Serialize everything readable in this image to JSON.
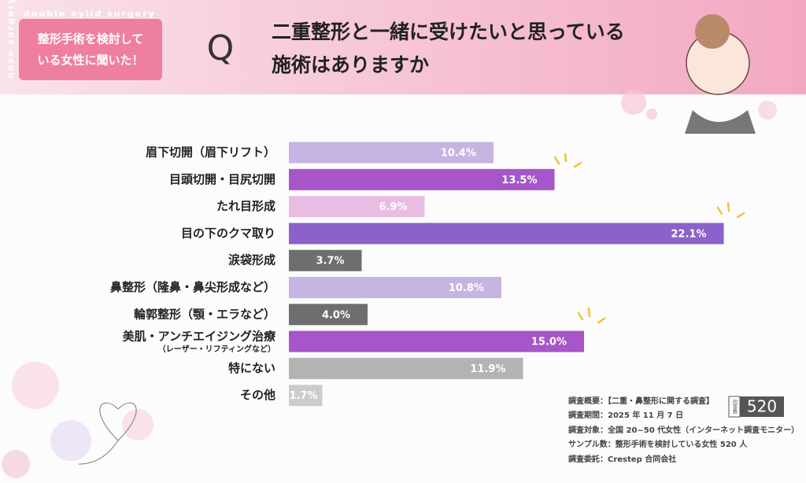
{
  "header": {
    "badge": [
      "整形手術を検討して",
      "いる女性に聞いた！"
    ],
    "q": "Q",
    "title": [
      "二重整形と一緒に受けたいと思っている",
      "施術はありますか"
    ],
    "decor": [
      "double eylid surgery",
      "nose surgery"
    ]
  },
  "chart_data": {
    "type": "bar",
    "orientation": "horizontal",
    "categories": [
      "眉下切開（眉下リフト）",
      "目頭切開・目尻切開",
      "たれ目形成",
      "目の下のクマ取り",
      "涙袋形成",
      "鼻整形（隆鼻・鼻尖形成など）",
      "輪郭整形（顎・エラなど）",
      [
        "美肌・アンチエイジング治療",
        "（レーザー・リフティングなど）"
      ],
      "特にない",
      "その他"
    ],
    "values": [
      10.4,
      13.5,
      6.9,
      22.1,
      3.7,
      10.8,
      4.0,
      15.0,
      11.9,
      1.7
    ],
    "value_labels": [
      "10.4%",
      "13.5%",
      "6.9%",
      "22.1%",
      "3.7%",
      "10.8%",
      "4.0%",
      "15.0%",
      "11.9%",
      "1.7%"
    ],
    "colors": [
      "#c6b4e2",
      "#a656c9",
      "#e9bde3",
      "#8b62c9",
      "#6e6e6e",
      "#c6b4e2",
      "#6e6e6e",
      "#a656c9",
      "#b3b3b3",
      "#cccccc"
    ]
  },
  "footer": {
    "notes": [
      "調査概要：【二重・鼻整形に関する調査】",
      "調査期間：2025 年 11 月 7 日",
      "調査対象：全国 20~50 代女性（インターネット調査モニター）",
      "サンプル数：整形手術を検討している女性 520 人",
      "調査委託：Crestep 合同会社"
    ],
    "respondents_label": "回答数",
    "respondents": "520"
  }
}
